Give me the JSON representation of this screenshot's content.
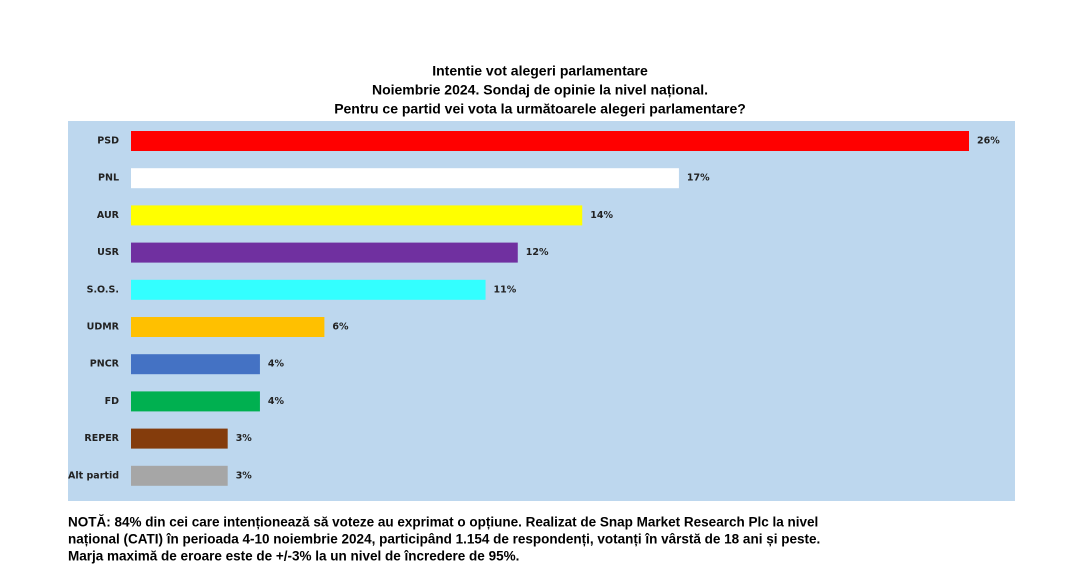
{
  "chart_data": {
    "type": "hbar",
    "title": "Intentie vot alegeri parlamentare",
    "subtitle": [
      "Noiembrie 2024. Sondaj de opinie la nivel național.",
      "Pentru ce partid vei vota la următoarele alegeri parlamentare?"
    ],
    "categories": [
      "PSD",
      "PNL",
      "AUR",
      "USR",
      "S.O.S.",
      "UDMR",
      "PNCR",
      "FD",
      "REPER",
      "Alt partid"
    ],
    "values": [
      26,
      17,
      14,
      12,
      11,
      6,
      4,
      4,
      3,
      3
    ],
    "value_labels": [
      "26%",
      "17%",
      "14%",
      "12%",
      "11%",
      "6%",
      "4%",
      "4%",
      "3%",
      "3%"
    ],
    "colors": [
      "#ff0000",
      "#ffffff",
      "#ffff00",
      "#7030a0",
      "#33ffff",
      "#ffc000",
      "#4472c4",
      "#00b050",
      "#843c0c",
      "#a6a6a6"
    ],
    "background": "#bdd7ee",
    "note": [
      "NOTĂ: 84% din cei care intenționează să voteze au exprimat o opțiune. Realizat de Snap Market Research Plc la nivel",
      "național (CATI) în perioada 4-10 noiembrie 2024, participând 1.154 de respondenți, votanți în vârstă de 18 ani și peste.",
      "Marja maximă de eroare este de +/-3% la un nivel de încredere de 95%."
    ]
  }
}
